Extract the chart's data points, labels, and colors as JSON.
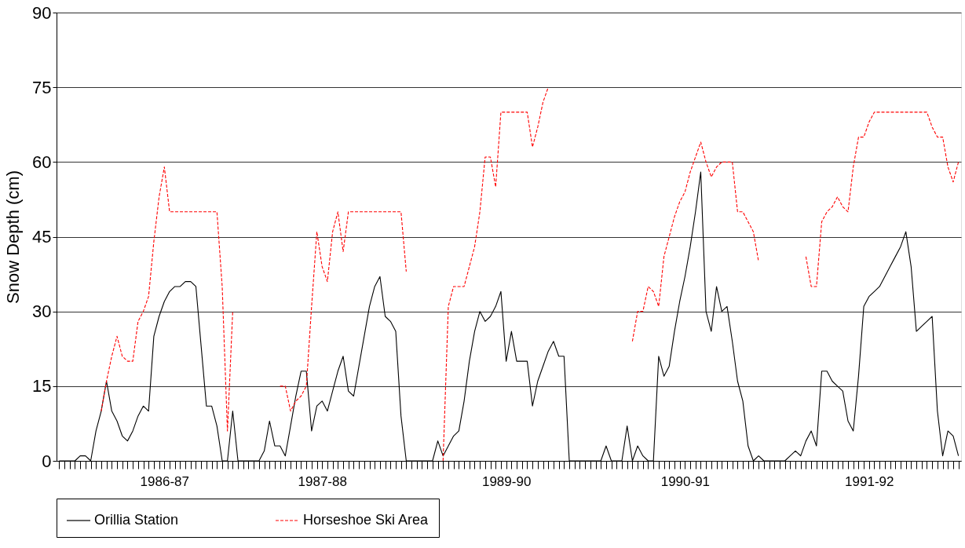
{
  "chart_data": {
    "type": "line",
    "ylabel": "Snow Depth (cm)",
    "ylim": [
      0,
      90
    ],
    "yticks": [
      0,
      15,
      30,
      45,
      60,
      75,
      90
    ],
    "categories": [
      null,
      null,
      null,
      null,
      null,
      null,
      null,
      null,
      null,
      null,
      null,
      null,
      null,
      null,
      null,
      null,
      null,
      null,
      null,
      null,
      "1986-87",
      null,
      null,
      null,
      null,
      null,
      null,
      null,
      null,
      null,
      null,
      null,
      null,
      null,
      null,
      null,
      null,
      null,
      null,
      null,
      null,
      null,
      null,
      null,
      null,
      null,
      null,
      null,
      null,
      null,
      "1987-88",
      null,
      null,
      null,
      null,
      null,
      null,
      null,
      null,
      null,
      null,
      null,
      null,
      null,
      null,
      null,
      null,
      null,
      null,
      null,
      null,
      null,
      null,
      null,
      null,
      null,
      null,
      null,
      null,
      null,
      null,
      null,
      null,
      null,
      null,
      "1989-90",
      null,
      null,
      null,
      null,
      null,
      null,
      null,
      null,
      null,
      null,
      null,
      null,
      null,
      null,
      null,
      null,
      null,
      null,
      null,
      null,
      null,
      null,
      null,
      null,
      null,
      null,
      null,
      null,
      null,
      null,
      null,
      null,
      null,
      "1990-91",
      null,
      null,
      null,
      null,
      null,
      null,
      null,
      null,
      null,
      null,
      null,
      null,
      null,
      null,
      null,
      null,
      null,
      null,
      null,
      null,
      null,
      null,
      null,
      null,
      null,
      null,
      null,
      null,
      null,
      null,
      null,
      null,
      null,
      null,
      "1991-92",
      null,
      null,
      null,
      null,
      null,
      null,
      null,
      null,
      null,
      null,
      null,
      null,
      null,
      null,
      null,
      null,
      null
    ],
    "grid": "y",
    "legend": "bottom",
    "series": [
      {
        "name": "Orillia Station",
        "color": "#000000",
        "line_style": "solid",
        "values": [
          0,
          0,
          0,
          0,
          1,
          1,
          0,
          6,
          10,
          16,
          10,
          8,
          5,
          4,
          6,
          9,
          11,
          10,
          25,
          29,
          32,
          34,
          35,
          35,
          36,
          36,
          35,
          23,
          11,
          11,
          7,
          0,
          0,
          10,
          0,
          0,
          0,
          0,
          0,
          2,
          8,
          3,
          3,
          1,
          7,
          13,
          18,
          18,
          6,
          11,
          12,
          10,
          14,
          18,
          21,
          14,
          13,
          19,
          25,
          31,
          35,
          37,
          29,
          28,
          26,
          9,
          0,
          0,
          0,
          0,
          0,
          0,
          4,
          1,
          3,
          5,
          6,
          12,
          20,
          26,
          30,
          28,
          29,
          31,
          34,
          20,
          26,
          20,
          20,
          20,
          11,
          16,
          19,
          22,
          24,
          21,
          21,
          0,
          0,
          0,
          0,
          0,
          0,
          0,
          3,
          0,
          0,
          0,
          7,
          0,
          3,
          1,
          0,
          0,
          21,
          17,
          19,
          26,
          32,
          37,
          43,
          50,
          58,
          30,
          26,
          35,
          30,
          31,
          24,
          16,
          12,
          3,
          0,
          1,
          0,
          0,
          0,
          0,
          0,
          1,
          2,
          1,
          4,
          6,
          3,
          18,
          18,
          16,
          15,
          14,
          8,
          6,
          17,
          31,
          33,
          34,
          35,
          37,
          39,
          41,
          43,
          46,
          39,
          26,
          27,
          28,
          29,
          10,
          1,
          6,
          5,
          1
        ]
      },
      {
        "name": "Horseshoe Ski Area",
        "color": "#ff0000",
        "line_style": "dashed",
        "values": [
          null,
          null,
          null,
          null,
          null,
          null,
          null,
          null,
          10,
          16,
          21,
          25,
          21,
          20,
          20,
          28,
          30,
          33,
          44,
          53,
          59,
          50,
          50,
          50,
          50,
          50,
          50,
          50,
          50,
          50,
          50,
          35,
          6,
          30,
          null,
          null,
          null,
          null,
          null,
          null,
          null,
          null,
          15,
          15,
          10,
          12,
          13,
          15,
          31,
          46,
          39,
          36,
          46,
          50,
          42,
          50,
          50,
          50,
          50,
          50,
          50,
          50,
          50,
          50,
          50,
          50,
          38,
          null,
          null,
          null,
          null,
          null,
          null,
          0,
          31,
          35,
          35,
          35,
          39,
          43,
          50,
          61,
          61,
          55,
          70,
          70,
          70,
          70,
          70,
          70,
          63,
          67,
          72,
          75,
          null,
          null,
          null,
          null,
          null,
          null,
          null,
          null,
          null,
          null,
          null,
          null,
          null,
          null,
          null,
          24,
          30,
          30,
          35,
          34,
          31,
          41,
          45,
          49,
          52,
          54,
          58,
          61,
          64,
          60,
          57,
          59,
          60,
          60,
          60,
          50,
          50,
          48,
          46,
          40,
          null,
          null,
          null,
          null,
          null,
          null,
          null,
          null,
          41,
          35,
          35,
          48,
          50,
          51,
          53,
          51,
          50,
          59,
          65,
          65,
          68,
          70,
          70,
          70,
          70,
          70,
          70,
          70,
          70,
          70,
          70,
          70,
          67,
          65,
          65,
          59,
          56,
          60
        ]
      }
    ]
  }
}
